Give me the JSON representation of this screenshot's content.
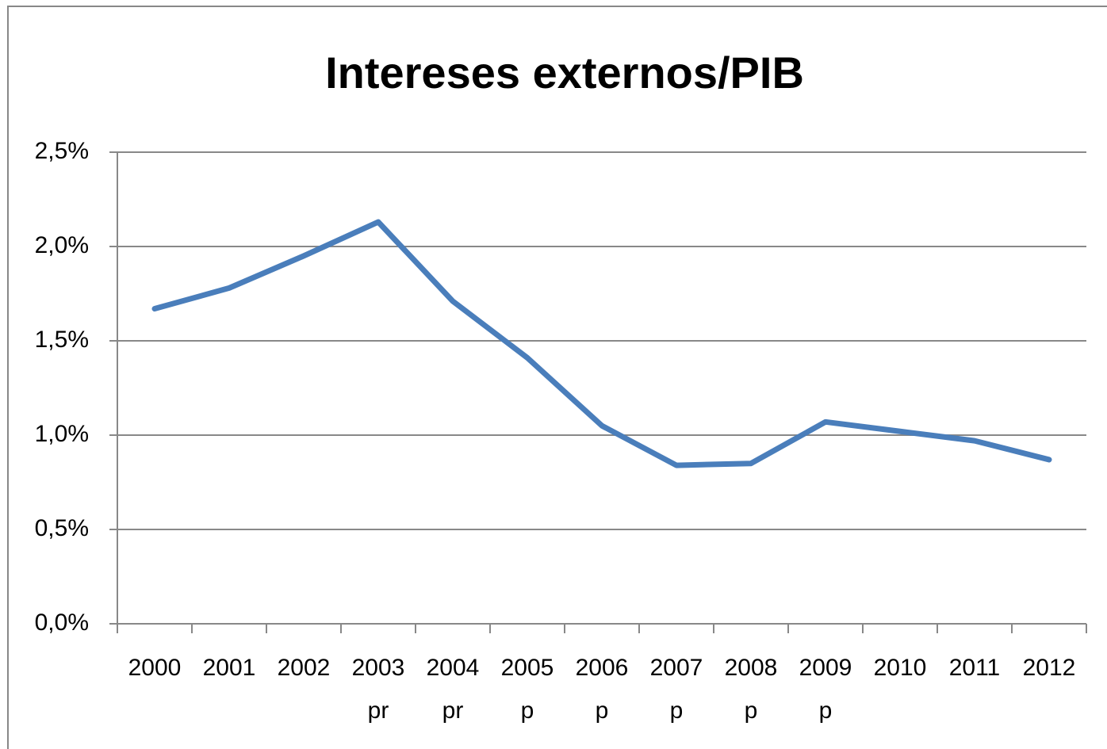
{
  "chart_data": {
    "type": "line",
    "title": "Intereses externos/PIB",
    "categories": [
      [
        "2000"
      ],
      [
        "2001"
      ],
      [
        "2002"
      ],
      [
        "2003",
        "pr"
      ],
      [
        "2004",
        "pr"
      ],
      [
        "2005",
        "p"
      ],
      [
        "2006",
        "p"
      ],
      [
        "2007",
        "p"
      ],
      [
        "2008",
        "p"
      ],
      [
        "2009",
        "p"
      ],
      [
        "2010"
      ],
      [
        "2011"
      ],
      [
        "2012"
      ]
    ],
    "series": [
      {
        "color": "#4a7ebb",
        "values": [
          1.67,
          1.78,
          1.95,
          2.13,
          1.71,
          1.41,
          1.05,
          0.84,
          0.85,
          1.07,
          1.02,
          0.97,
          0.87
        ]
      }
    ],
    "ylim": [
      0,
      2.5
    ],
    "yticks": [
      {
        "value": 0,
        "label": "0,0%"
      },
      {
        "value": 0.5,
        "label": "0,5%"
      },
      {
        "value": 1,
        "label": "1,0%"
      },
      {
        "value": 1.5,
        "label": "1,5%"
      },
      {
        "value": 2,
        "label": "2,0%"
      },
      {
        "value": 2.5,
        "label": "2,5%"
      }
    ],
    "grid": true
  }
}
